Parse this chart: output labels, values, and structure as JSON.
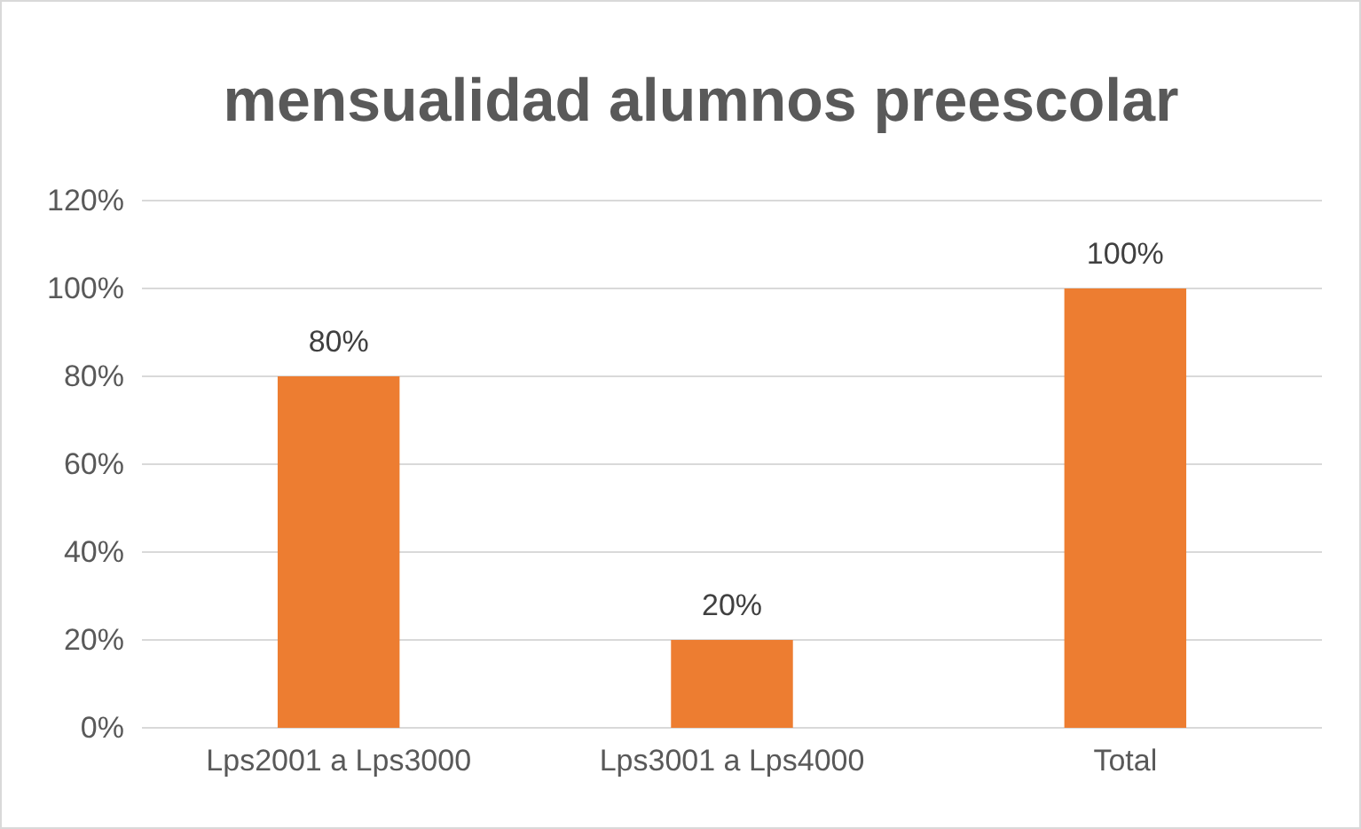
{
  "chart_data": {
    "type": "bar",
    "title": "mensualidad alumnos preescolar",
    "categories": [
      "Lps2001 a Lps3000",
      "Lps3001 a Lps4000",
      "Total"
    ],
    "values": [
      80,
      20,
      100
    ],
    "color": "#ed7d31",
    "value_labels": [
      "80%",
      "20%",
      "100%"
    ],
    "ylim": [
      0,
      120
    ],
    "yticks": [
      {
        "value": 0,
        "label": "0%"
      },
      {
        "value": 20,
        "label": "20%"
      },
      {
        "value": 40,
        "label": "40%"
      },
      {
        "value": 60,
        "label": "60%"
      },
      {
        "value": 80,
        "label": "80%"
      },
      {
        "value": 100,
        "label": "100%"
      },
      {
        "value": 120,
        "label": "120%"
      }
    ],
    "grid": "y"
  }
}
